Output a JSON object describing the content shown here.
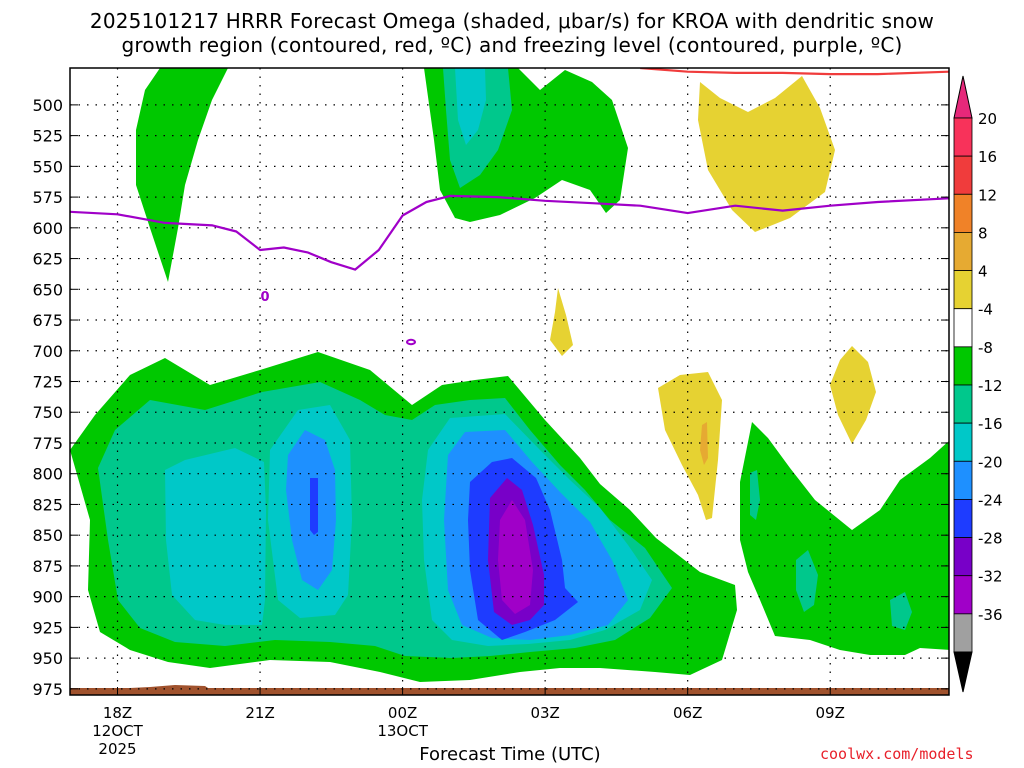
{
  "chart_data": {
    "type": "heatmap",
    "title_line1": "2025101217 HRRR Forecast Omega (shaded, μbar/s) for KROA with dendritic snow",
    "title_line2": "growth region (contoured, red, ºC) and freezing level (contoured, purple, ºC)",
    "xlabel": "Forecast Time (UTC)",
    "credit": "coolwx.com/models",
    "y_ticks": [
      "500",
      "525",
      "550",
      "575",
      "600",
      "625",
      "650",
      "675",
      "700",
      "725",
      "750",
      "775",
      "800",
      "825",
      "850",
      "875",
      "900",
      "925",
      "950",
      "975"
    ],
    "x_ticks": [
      {
        "label": "18Z",
        "sub1": "12OCT",
        "sub2": "2025",
        "hour": 1
      },
      {
        "label": "21Z",
        "sub1": "",
        "sub2": "",
        "hour": 4
      },
      {
        "label": "00Z",
        "sub1": "13OCT",
        "sub2": "",
        "hour": 7
      },
      {
        "label": "03Z",
        "sub1": "",
        "sub2": "",
        "hour": 10
      },
      {
        "label": "06Z",
        "sub1": "",
        "sub2": "",
        "hour": 13
      },
      {
        "label": "09Z",
        "sub1": "",
        "sub2": "",
        "hour": 16
      }
    ],
    "x_range_hours": [
      0,
      18.5
    ],
    "y_range_mb": [
      470,
      980
    ],
    "colorbar": {
      "labels": [
        "20",
        "16",
        "12",
        "8",
        "4",
        "-4",
        "-8",
        "-12",
        "-16",
        "-20",
        "-24",
        "-28",
        "-32",
        "-36"
      ],
      "colors": [
        "#f8325a",
        "#f03c3c",
        "#f08228",
        "#e6aa32",
        "#e6d232",
        "#ffffff",
        "#00c800",
        "#00c88c",
        "#00c8c8",
        "#1e90ff",
        "#1e3cff",
        "#7800c8",
        "#a000c8",
        "#a0a0a0"
      ]
    },
    "freezing_level_label": "0",
    "freezing_level": {
      "hours": [
        0,
        1,
        2,
        3,
        3.5,
        4,
        4.5,
        5,
        5.5,
        6,
        6.5,
        7,
        7.5,
        8,
        9,
        10,
        11,
        12,
        13,
        14,
        15,
        16,
        17,
        18.5
      ],
      "mb": [
        587,
        589,
        596,
        598,
        603,
        618,
        616,
        620,
        628,
        634,
        618,
        590,
        579,
        574,
        575,
        578,
        580,
        582,
        588,
        582,
        586,
        582,
        579,
        576
      ]
    },
    "dgz_top": {
      "hours": [
        12,
        13,
        14,
        15,
        16,
        17,
        18.5
      ],
      "mb": [
        470,
        473,
        474,
        474,
        475,
        475,
        473
      ]
    }
  }
}
